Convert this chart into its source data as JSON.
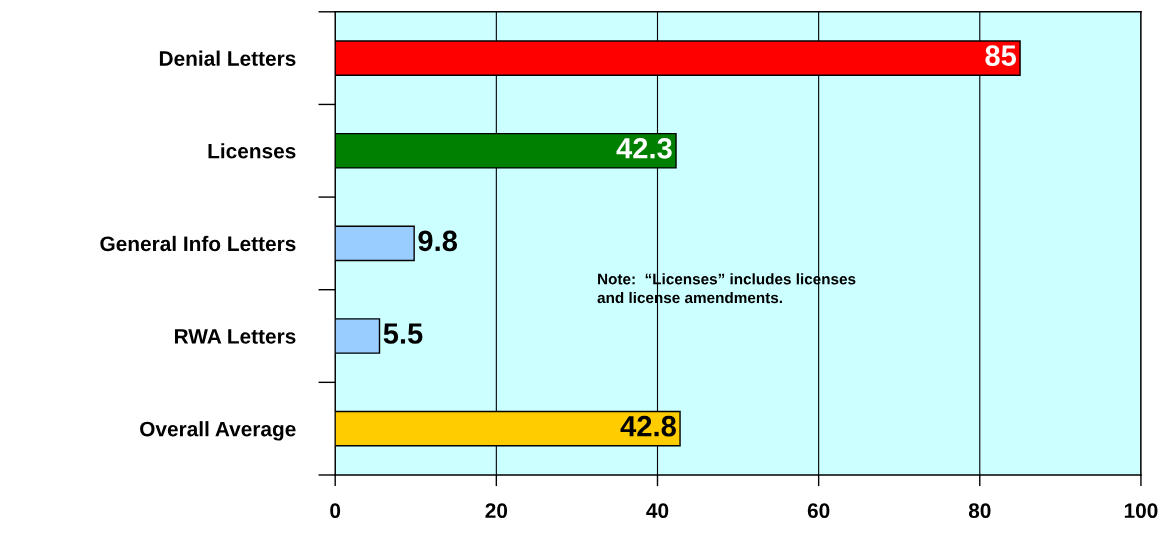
{
  "chart_data": {
    "type": "bar",
    "orientation": "horizontal",
    "categories": [
      "Denial Letters",
      "Licenses",
      "General Info Letters",
      "RWA Letters",
      "Overall Average"
    ],
    "values": [
      85,
      42.3,
      9.8,
      5.5,
      42.8
    ],
    "colors": [
      "#ff0000",
      "#008000",
      "#99ccff",
      "#99ccff",
      "#ffcc00"
    ],
    "xlim": [
      0,
      100
    ],
    "xticks": [
      0,
      20,
      40,
      60,
      80,
      100
    ],
    "grid": "x",
    "data_labels": true,
    "annotations": [
      "Note:  “Licenses” includes licenses\nand license amendments."
    ]
  }
}
